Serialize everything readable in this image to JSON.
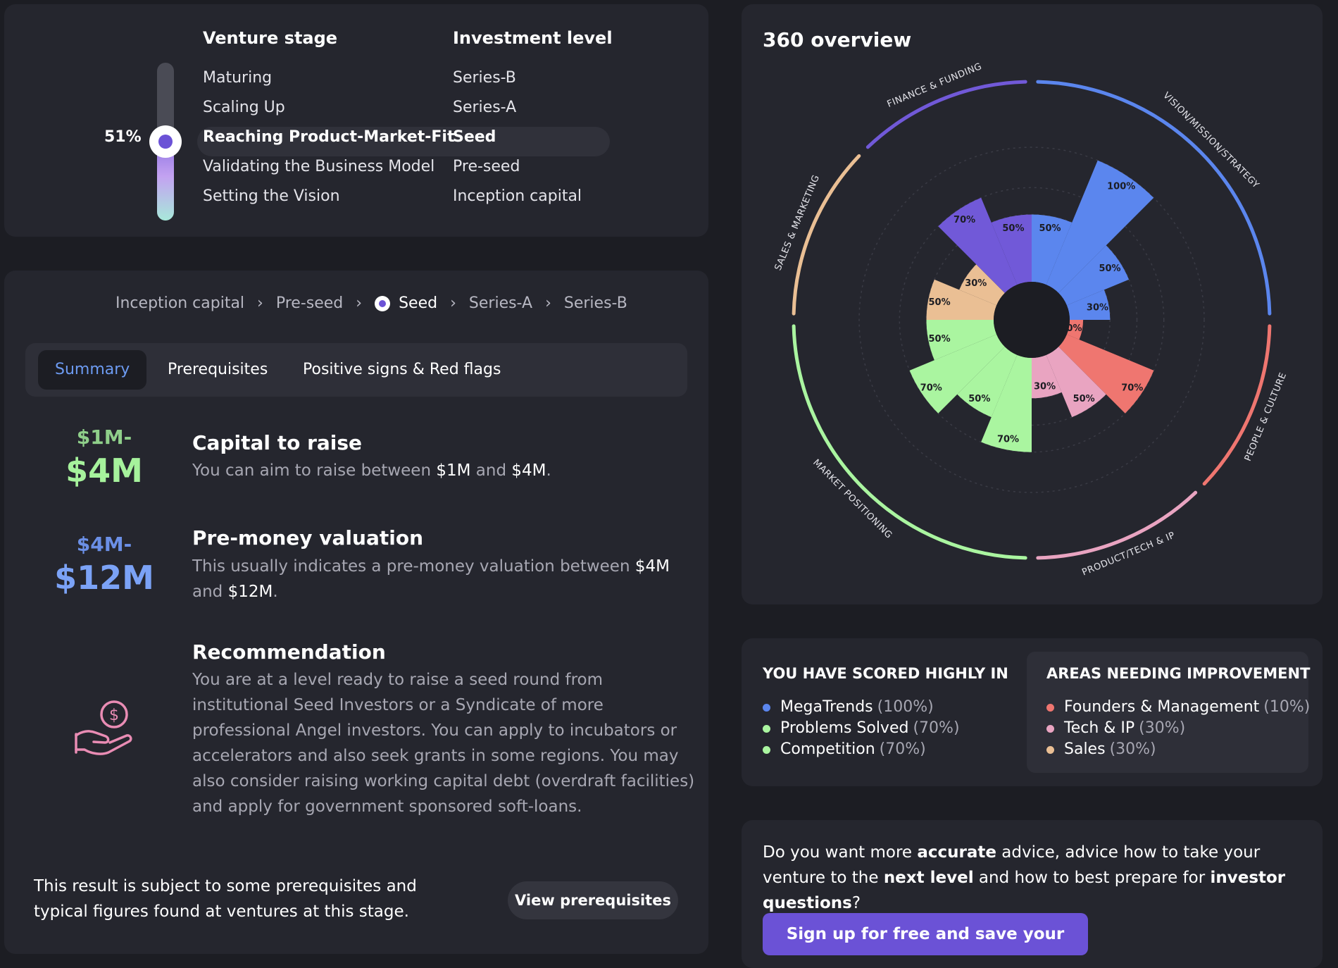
{
  "stage": {
    "col_venture": "Venture stage",
    "col_investment": "Investment level",
    "percent": "51%",
    "rows": [
      {
        "venture": "Maturing",
        "investment": "Series-B"
      },
      {
        "venture": "Scaling Up",
        "investment": "Series-A"
      },
      {
        "venture": "Reaching Product-Market-Fit",
        "investment": "Seed"
      },
      {
        "venture": "Validating the Business Model",
        "investment": "Pre-seed"
      },
      {
        "venture": "Setting the Vision",
        "investment": "Inception capital"
      }
    ]
  },
  "breadcrumb": [
    "Inception capital",
    "Pre-seed",
    "Seed",
    "Series-A",
    "Series-B"
  ],
  "tabs": [
    "Summary",
    "Prerequisites",
    "Positive signs & Red flags"
  ],
  "summary": {
    "capital": {
      "range_top": "$1M-",
      "range_main": "$4M",
      "title": "Capital to raise",
      "text_a": "You can aim to raise between ",
      "v1": "$1M",
      "text_b": " and ",
      "v2": "$4M",
      "text_c": "."
    },
    "valuation": {
      "range_top": "$4M-",
      "range_main": "$12M",
      "title": "Pre-money valuation",
      "text_a": "This usually indicates a pre-money valuation between ",
      "v1": "$4M",
      "text_b": " and ",
      "v2": "$12M",
      "text_c": "."
    },
    "recommendation": {
      "title": "Recommendation",
      "text": "You are at a level ready to raise a seed round from institutional Seed Investors or a Syndicate of more professional Angel investors. You can apply to incubators or accelerators and also seek grants in some regions. You may also consider raising working capital debt (overdraft facilities) and apply for government sponsored soft-loans."
    },
    "footnote": "This result is subject to some prerequisites and typical figures found at ventures at this stage.",
    "view_button": "View prerequisites"
  },
  "overview": {
    "title": "360 overview",
    "categories": [
      {
        "label": "VISION/MISSION/STRATEGY",
        "color": "#5b86ee"
      },
      {
        "label": "PEOPLE & CULTURE",
        "color": "#ef7670"
      },
      {
        "label": "PRODUCT/TECH & IP",
        "color": "#e9a4c1"
      },
      {
        "label": "MARKET POSITIONING",
        "color": "#aaf5a0"
      },
      {
        "label": "SALES & MARKETING",
        "color": "#eabf94"
      },
      {
        "label": "FINANCE & FUNDING",
        "color": "#7159d8"
      }
    ]
  },
  "chart_data": {
    "type": "polar-bar",
    "title": "360 overview",
    "max": 100,
    "segments": [
      {
        "category": "VISION/MISSION/STRATEGY",
        "value": 50,
        "color": "#5b86ee"
      },
      {
        "category": "VISION/MISSION/STRATEGY",
        "value": 100,
        "color": "#5b86ee"
      },
      {
        "category": "VISION/MISSION/STRATEGY",
        "value": 50,
        "color": "#5b86ee"
      },
      {
        "category": "VISION/MISSION/STRATEGY",
        "value": 30,
        "color": "#5b86ee"
      },
      {
        "category": "PEOPLE & CULTURE",
        "value": 10,
        "color": "#ef7670"
      },
      {
        "category": "PEOPLE & CULTURE",
        "value": 70,
        "color": "#ef7670"
      },
      {
        "category": "PRODUCT/TECH & IP",
        "value": 50,
        "color": "#e9a4c1"
      },
      {
        "category": "PRODUCT/TECH & IP",
        "value": 30,
        "color": "#e9a4c1"
      },
      {
        "category": "MARKET POSITIONING",
        "value": 70,
        "color": "#aaf5a0"
      },
      {
        "category": "MARKET POSITIONING",
        "value": 50,
        "color": "#aaf5a0"
      },
      {
        "category": "MARKET POSITIONING",
        "value": 70,
        "color": "#aaf5a0"
      },
      {
        "category": "MARKET POSITIONING",
        "value": 50,
        "color": "#aaf5a0"
      },
      {
        "category": "SALES & MARKETING",
        "value": 50,
        "color": "#eabf94"
      },
      {
        "category": "SALES & MARKETING",
        "value": 30,
        "color": "#eabf94"
      },
      {
        "category": "FINANCE & FUNDING",
        "value": 70,
        "color": "#7159d8"
      },
      {
        "category": "FINANCE & FUNDING",
        "value": 50,
        "color": "#7159d8"
      }
    ]
  },
  "scores": {
    "high_title": "YOU HAVE SCORED HIGHLY IN",
    "high": [
      {
        "label": "MegaTrends",
        "pct": "(100%)",
        "color": "#5b86ee"
      },
      {
        "label": "Problems Solved",
        "pct": "(70%)",
        "color": "#aaf5a0"
      },
      {
        "label": "Competition",
        "pct": "(70%)",
        "color": "#aaf5a0"
      }
    ],
    "low_title": "AREAS NEEDING IMPROVEMENT",
    "low": [
      {
        "label": "Founders & Management",
        "pct": "(10%)",
        "color": "#ef7670"
      },
      {
        "label": "Tech & IP",
        "pct": "(30%)",
        "color": "#e9a4c1"
      },
      {
        "label": "Sales",
        "pct": "(30%)",
        "color": "#eabf94"
      }
    ]
  },
  "cta": {
    "t1": "Do you want more ",
    "b1": "accurate",
    "t2": " advice, advice how to take your venture to the ",
    "b2": "next level",
    "t3": " and how to best prepare for ",
    "b3": "investor questions",
    "t4": "?",
    "button": "Sign up for free and save your score"
  }
}
